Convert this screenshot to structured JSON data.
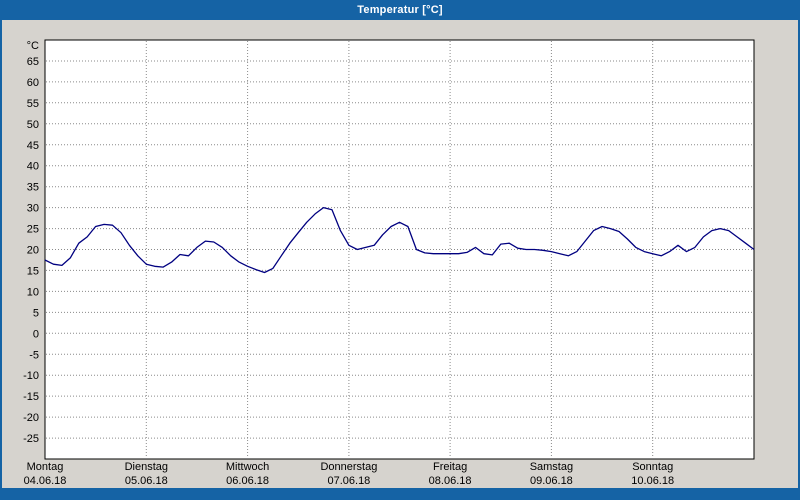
{
  "window": {
    "title": "Temperatur [°C]"
  },
  "chart_data": {
    "type": "line",
    "title": "Temperatur [°C]",
    "unit_label": "°C",
    "ylim": [
      -25,
      65
    ],
    "ytick_step": 5,
    "yticks": [
      65,
      60,
      55,
      50,
      45,
      40,
      35,
      30,
      25,
      20,
      15,
      10,
      5,
      0,
      -5,
      -10,
      -15,
      -20,
      -25
    ],
    "grid": "dotted",
    "legend": "none",
    "days": [
      {
        "name": "Montag",
        "date": "04.06.18"
      },
      {
        "name": "Dienstag",
        "date": "05.06.18"
      },
      {
        "name": "Mittwoch",
        "date": "06.06.18"
      },
      {
        "name": "Donnerstag",
        "date": "07.06.18"
      },
      {
        "name": "Freitag",
        "date": "08.06.18"
      },
      {
        "name": "Samstag",
        "date": "09.06.18"
      },
      {
        "name": "Sonntag",
        "date": "10.06.18"
      }
    ],
    "sample_interval_hours": 2,
    "series": [
      {
        "name": "Temperatur",
        "values": [
          17.5,
          16.5,
          16.2,
          18,
          21.5,
          23,
          25.5,
          26,
          25.8,
          24,
          21,
          18.5,
          16.5,
          16,
          15.8,
          17,
          18.8,
          18.5,
          20.5,
          22,
          21.8,
          20.5,
          18.5,
          17,
          16,
          15.2,
          14.5,
          15.5,
          18.5,
          21.5,
          24,
          26.5,
          28.5,
          30,
          29.5,
          24.5,
          21,
          20,
          20.5,
          21,
          23.5,
          25.5,
          26.5,
          25.5,
          20,
          19.2,
          19,
          19,
          19,
          19,
          19.3,
          20.5,
          19,
          18.7,
          21.3,
          21.5,
          20.3,
          20,
          20,
          19.8,
          19.5,
          19,
          18.5,
          19.5,
          22,
          24.5,
          25.5,
          25,
          24.3,
          22.5,
          20.5,
          19.5,
          19,
          18.5,
          19.5,
          21,
          19.5,
          20.5,
          23,
          24.5,
          25,
          24.5,
          23,
          21.5,
          20
        ]
      }
    ],
    "colors": {
      "line": "#000080",
      "grid": "#8a8a8a",
      "plot_border": "#000000",
      "titlebar": "#1563a5",
      "background": "#d6d3ce",
      "plot_background": "#ffffff"
    }
  }
}
